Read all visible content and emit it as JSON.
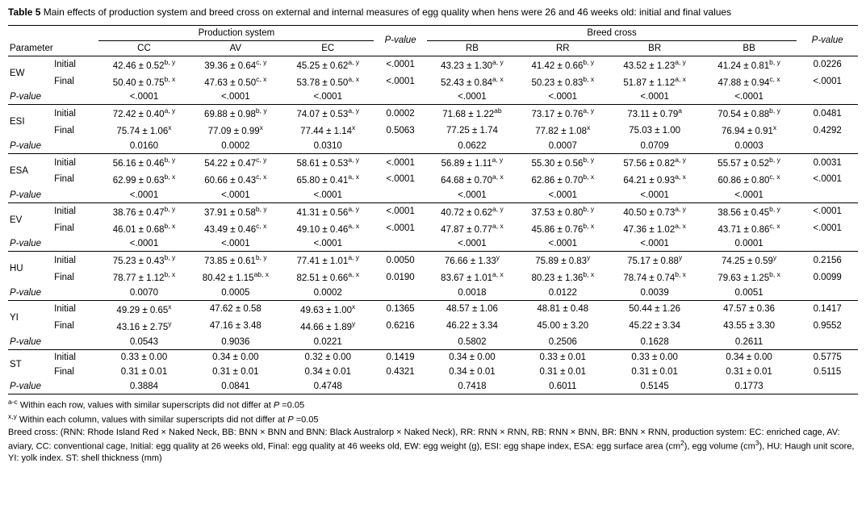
{
  "caption": {
    "label": "Table 5",
    "text": " Main effects of production system and breed cross on external and internal measures of egg quality when hens were 26 and 46 weeks old: initial and final values"
  },
  "header": {
    "parameter": "Parameter",
    "production_system": "Production system",
    "production_cols": [
      "CC",
      "AV",
      "EC"
    ],
    "p_value": "P-value",
    "breed_cross": "Breed cross",
    "breed_cols": [
      "RB",
      "RR",
      "BR",
      "BB"
    ]
  },
  "labels": {
    "initial": "Initial",
    "final": "Final",
    "p_value": "P-value"
  },
  "parameters": [
    {
      "name": "EW",
      "initial": {
        "production": [
          {
            "v": "42.46 ± 0.52",
            "s": "b, y"
          },
          {
            "v": "39.36 ± 0.64",
            "s": "c, y"
          },
          {
            "v": "45.25 ± 0.62",
            "s": "a, y"
          }
        ],
        "p_production": "<.0001",
        "breed": [
          {
            "v": "43.23 ± 1.30",
            "s": "a, y"
          },
          {
            "v": "41.42 ± 0.66",
            "s": "b, y"
          },
          {
            "v": "43.52 ± 1.23",
            "s": "a, y"
          },
          {
            "v": "41.24 ± 0.81",
            "s": "b, y"
          }
        ],
        "p_breed": "0.0226"
      },
      "final": {
        "production": [
          {
            "v": "50.40 ± 0.75",
            "s": "b, x"
          },
          {
            "v": "47.63 ± 0.50",
            "s": "c, x"
          },
          {
            "v": "53.78 ± 0.50",
            "s": "a, x"
          }
        ],
        "p_production": "<.0001",
        "breed": [
          {
            "v": "52.43 ± 0.84",
            "s": "a, x"
          },
          {
            "v": "50.23 ± 0.83",
            "s": "b, x"
          },
          {
            "v": "51.87 ± 1.12",
            "s": "a, x"
          },
          {
            "v": "47.88 ± 0.94",
            "s": "c, x"
          }
        ],
        "p_breed": "<.0001"
      },
      "p_row": {
        "production": [
          "<.0001",
          "<.0001",
          "<.0001"
        ],
        "breed": [
          "<.0001",
          "<.0001",
          "<.0001",
          "<.0001"
        ]
      }
    },
    {
      "name": "ESI",
      "initial": {
        "production": [
          {
            "v": "72.42 ± 0.40",
            "s": "a, y"
          },
          {
            "v": "69.88 ± 0.98",
            "s": "b, y"
          },
          {
            "v": "74.07 ± 0.53",
            "s": "a, y"
          }
        ],
        "p_production": "0.0002",
        "breed": [
          {
            "v": "71.68 ± 1.22",
            "s": "ab"
          },
          {
            "v": "73.17 ± 0.76",
            "s": "a, y"
          },
          {
            "v": "73.11 ± 0.79",
            "s": "a"
          },
          {
            "v": "70.54 ± 0.88",
            "s": "b, y"
          }
        ],
        "p_breed": "0.0481"
      },
      "final": {
        "production": [
          {
            "v": "75.74 ± 1.06",
            "s": "x"
          },
          {
            "v": "77.09 ± 0.99",
            "s": "x"
          },
          {
            "v": "77.44 ± 1.14",
            "s": "x"
          }
        ],
        "p_production": "0.5063",
        "breed": [
          {
            "v": "77.25 ± 1.74",
            "s": ""
          },
          {
            "v": "77.82 ± 1.08",
            "s": "x"
          },
          {
            "v": "75.03 ± 1.00",
            "s": ""
          },
          {
            "v": "76.94 ± 0.91",
            "s": "x"
          }
        ],
        "p_breed": "0.4292"
      },
      "p_row": {
        "production": [
          "0.0160",
          "0.0002",
          "0.0310"
        ],
        "breed": [
          "0.0622",
          "0.0007",
          "0.0709",
          "0.0003"
        ]
      }
    },
    {
      "name": "ESA",
      "initial": {
        "production": [
          {
            "v": "56.16 ± 0.46",
            "s": "b, y"
          },
          {
            "v": "54.22 ± 0.47",
            "s": "c, y"
          },
          {
            "v": "58.61 ± 0.53",
            "s": "a, y"
          }
        ],
        "p_production": "<.0001",
        "breed": [
          {
            "v": "56.89 ± 1.11",
            "s": "a, y"
          },
          {
            "v": "55.30 ± 0.56",
            "s": "b, y"
          },
          {
            "v": "57.56 ± 0.82",
            "s": "a, y"
          },
          {
            "v": "55.57 ± 0.52",
            "s": "b, y"
          }
        ],
        "p_breed": "0.0031"
      },
      "final": {
        "production": [
          {
            "v": "62.99 ± 0.63",
            "s": "b, x"
          },
          {
            "v": "60.66 ± 0.43",
            "s": "c, x"
          },
          {
            "v": "65.80 ± 0.41",
            "s": "a, x"
          }
        ],
        "p_production": "<.0001",
        "breed": [
          {
            "v": "64.68 ± 0.70",
            "s": "a, x"
          },
          {
            "v": "62.86 ± 0.70",
            "s": "b, x"
          },
          {
            "v": "64.21 ± 0.93",
            "s": "a, x"
          },
          {
            "v": "60.86 ± 0.80",
            "s": "c, x"
          }
        ],
        "p_breed": "<.0001"
      },
      "p_row": {
        "production": [
          "<.0001",
          "<.0001",
          "<.0001"
        ],
        "breed": [
          "<.0001",
          "<.0001",
          "<.0001",
          "<.0001"
        ]
      }
    },
    {
      "name": "EV",
      "initial": {
        "production": [
          {
            "v": "38.76 ± 0.47",
            "s": "b, y"
          },
          {
            "v": "37.91 ± 0.58",
            "s": "b, y"
          },
          {
            "v": "41.31 ± 0.56",
            "s": "a, y"
          }
        ],
        "p_production": "<.0001",
        "breed": [
          {
            "v": "40.72 ± 0.62",
            "s": "a, y"
          },
          {
            "v": "37.53 ± 0.80",
            "s": "b, y"
          },
          {
            "v": "40.50 ± 0.73",
            "s": "a, y"
          },
          {
            "v": "38.56 ± 0.45",
            "s": "b, y"
          }
        ],
        "p_breed": "<.0001"
      },
      "final": {
        "production": [
          {
            "v": "46.01 ± 0.68",
            "s": "b, x"
          },
          {
            "v": "43.49 ± 0.46",
            "s": "c, x"
          },
          {
            "v": "49.10 ± 0.46",
            "s": "a, x"
          }
        ],
        "p_production": "<.0001",
        "breed": [
          {
            "v": "47.87 ± 0.77",
            "s": "a, x"
          },
          {
            "v": "45.86 ± 0.76",
            "s": "b, x"
          },
          {
            "v": "47.36 ± 1.02",
            "s": "a, x"
          },
          {
            "v": "43.71 ± 0.86",
            "s": "c, x"
          }
        ],
        "p_breed": "<.0001"
      },
      "p_row": {
        "production": [
          "<.0001",
          "<.0001",
          "<.0001"
        ],
        "breed": [
          "<.0001",
          "<.0001",
          "<.0001",
          "0.0001"
        ]
      }
    },
    {
      "name": "HU",
      "initial": {
        "production": [
          {
            "v": "75.23 ± 0.43",
            "s": "b, y"
          },
          {
            "v": "73.85 ± 0.61",
            "s": "b, y"
          },
          {
            "v": "77.41 ± 1.01",
            "s": "a, y"
          }
        ],
        "p_production": "0.0050",
        "breed": [
          {
            "v": "76.66 ± 1.33",
            "s": "y"
          },
          {
            "v": "75.89 ± 0.83",
            "s": "y"
          },
          {
            "v": "75.17 ± 0.88",
            "s": "y"
          },
          {
            "v": "74.25 ± 0.59",
            "s": "y"
          }
        ],
        "p_breed": "0.2156"
      },
      "final": {
        "production": [
          {
            "v": "78.77 ± 1.12",
            "s": "b, x"
          },
          {
            "v": "80.42 ± 1.15",
            "s": "ab, x"
          },
          {
            "v": "82.51 ± 0.66",
            "s": "a, x"
          }
        ],
        "p_production": "0.0190",
        "breed": [
          {
            "v": "83.67 ± 1.01",
            "s": "a, x"
          },
          {
            "v": "80.23 ± 1.36",
            "s": "b, x"
          },
          {
            "v": "78.74 ± 0.74",
            "s": "b, x"
          },
          {
            "v": "79.63 ± 1.25",
            "s": "b, x"
          }
        ],
        "p_breed": "0.0099"
      },
      "p_row": {
        "production": [
          "0.0070",
          "0.0005",
          "0.0002"
        ],
        "breed": [
          "0.0018",
          "0.0122",
          "0.0039",
          "0.0051"
        ]
      }
    },
    {
      "name": "YI",
      "initial": {
        "production": [
          {
            "v": "49.29 ± 0.65",
            "s": "x"
          },
          {
            "v": "47.62 ± 0.58",
            "s": ""
          },
          {
            "v": "49.63 ± 1.00",
            "s": "x"
          }
        ],
        "p_production": "0.1365",
        "breed": [
          {
            "v": "48.57 ± 1.06",
            "s": ""
          },
          {
            "v": "48.81 ± 0.48",
            "s": ""
          },
          {
            "v": "50.44 ± 1.26",
            "s": ""
          },
          {
            "v": "47.57 ± 0.36",
            "s": ""
          }
        ],
        "p_breed": "0.1417"
      },
      "final": {
        "production": [
          {
            "v": "43.16 ± 2.75",
            "s": "y"
          },
          {
            "v": "47.16 ± 3.48",
            "s": ""
          },
          {
            "v": "44.66 ± 1.89",
            "s": "y"
          }
        ],
        "p_production": "0.6216",
        "breed": [
          {
            "v": "46.22 ± 3.34",
            "s": ""
          },
          {
            "v": "45.00 ± 3.20",
            "s": ""
          },
          {
            "v": "45.22 ± 3.34",
            "s": ""
          },
          {
            "v": "43.55 ± 3.30",
            "s": ""
          }
        ],
        "p_breed": "0.9552"
      },
      "p_row": {
        "production": [
          "0.0543",
          "0.9036",
          "0.0221"
        ],
        "breed": [
          "0.5802",
          "0.2506",
          "0.1628",
          "0.2611"
        ]
      }
    },
    {
      "name": "ST",
      "initial": {
        "production": [
          {
            "v": "0.33 ± 0.00",
            "s": ""
          },
          {
            "v": "0.34 ± 0.00",
            "s": ""
          },
          {
            "v": "0.32 ± 0.00",
            "s": ""
          }
        ],
        "p_production": "0.1419",
        "breed": [
          {
            "v": "0.34 ± 0.00",
            "s": ""
          },
          {
            "v": "0.33 ± 0.01",
            "s": ""
          },
          {
            "v": "0.33 ± 0.00",
            "s": ""
          },
          {
            "v": "0.34 ± 0.00",
            "s": ""
          }
        ],
        "p_breed": "0.5775"
      },
      "final": {
        "production": [
          {
            "v": "0.31 ± 0.01",
            "s": ""
          },
          {
            "v": "0.31 ± 0.01",
            "s": ""
          },
          {
            "v": "0.34 ± 0.01",
            "s": ""
          }
        ],
        "p_production": "0.4321",
        "breed": [
          {
            "v": "0.34 ± 0.01",
            "s": ""
          },
          {
            "v": "0.31 ± 0.01",
            "s": ""
          },
          {
            "v": "0.31 ± 0.01",
            "s": ""
          },
          {
            "v": "0.31 ± 0.01",
            "s": ""
          }
        ],
        "p_breed": "0.5115"
      },
      "p_row": {
        "production": [
          "0.3884",
          "0.0841",
          "0.4748"
        ],
        "breed": [
          "0.7418",
          "0.6011",
          "0.5145",
          "0.1773"
        ]
      }
    }
  ],
  "footnotes": [
    [
      {
        "t": "a-c",
        "sup": true
      },
      {
        "t": " Within each row, values with similar superscripts did not differ at "
      },
      {
        "t": "P",
        "italic": true
      },
      {
        "t": " =0.05"
      }
    ],
    [
      {
        "t": "x,y",
        "sup": true
      },
      {
        "t": " Within each column, values with similar superscripts did not differ at "
      },
      {
        "t": "P",
        "italic": true
      },
      {
        "t": " =0.05"
      }
    ],
    [
      {
        "t": "Breed cross: (RNN: Rhode Island Red × Naked Neck, BB: BNN × BNN and BNN: Black Australorp × Naked Neck), RR: RNN × RNN, RB: RNN × BNN, BR: BNN × RNN, production system: EC: enriched cage, AV: aviary, CC: conventional cage,  Initial: egg quality at 26 weeks old, Final: egg quality at 46 weeks old, EW: egg weight (g), ESI: egg shape index, ESA: egg surface area (cm"
      },
      {
        "t": "2",
        "sup": true
      },
      {
        "t": "), egg volume (cm"
      },
      {
        "t": "3",
        "sup": true
      },
      {
        "t": "), HU: Haugh unit score, YI: yolk index. ST: shell thickness (mm)"
      }
    ]
  ]
}
